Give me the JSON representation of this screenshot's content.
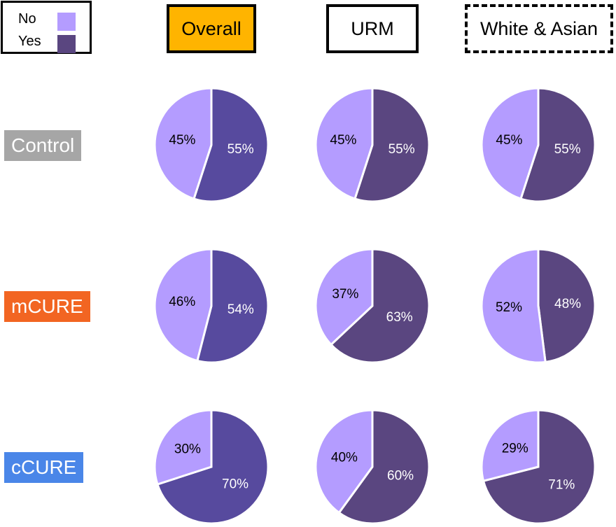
{
  "legend": {
    "items": [
      {
        "label": "No",
        "color": "#b49cff"
      },
      {
        "label": "Yes",
        "color": "#5a4680"
      }
    ]
  },
  "columns": [
    {
      "label": "Overall",
      "style": "solid-fill",
      "fill": "#ffb400"
    },
    {
      "label": "URM",
      "style": "solid-border",
      "fill": "#ffffff"
    },
    {
      "label": "White & Asian",
      "style": "dashed-border",
      "fill": "#ffffff"
    }
  ],
  "rows": [
    {
      "label": "Control",
      "color": "#a6a6a6"
    },
    {
      "label": "mCURE",
      "color": "#f26522"
    },
    {
      "label": "cCURE",
      "color": "#4a86e8"
    }
  ],
  "chart_data": {
    "type": "pie",
    "categories": [
      "No",
      "Yes"
    ],
    "colors": {
      "No": "#b49cff",
      "Yes": "#5a4680",
      "Yes_overall": "#574a9e"
    },
    "pies": [
      {
        "row": "Control",
        "column": "Overall",
        "No": 45,
        "Yes": 55,
        "labels": [
          "45%",
          "55%"
        ]
      },
      {
        "row": "Control",
        "column": "URM",
        "No": 45,
        "Yes": 55,
        "labels": [
          "45%",
          "55%"
        ]
      },
      {
        "row": "Control",
        "column": "White & Asian",
        "No": 45,
        "Yes": 55,
        "labels": [
          "45%",
          "55%"
        ]
      },
      {
        "row": "mCURE",
        "column": "Overall",
        "No": 46,
        "Yes": 54,
        "labels": [
          "46%",
          "54%"
        ]
      },
      {
        "row": "mCURE",
        "column": "URM",
        "No": 37,
        "Yes": 63,
        "labels": [
          "37%",
          "63%"
        ]
      },
      {
        "row": "mCURE",
        "column": "White & Asian",
        "No": 52,
        "Yes": 48,
        "labels": [
          "52%",
          "48%"
        ]
      },
      {
        "row": "cCURE",
        "column": "Overall",
        "No": 30,
        "Yes": 70,
        "labels": [
          "30%",
          "70%"
        ]
      },
      {
        "row": "cCURE",
        "column": "URM",
        "No": 40,
        "Yes": 60,
        "labels": [
          "40%",
          "60%"
        ]
      },
      {
        "row": "cCURE",
        "column": "White & Asian",
        "No": 29,
        "Yes": 71,
        "labels": [
          "29%",
          "71%"
        ]
      }
    ]
  }
}
